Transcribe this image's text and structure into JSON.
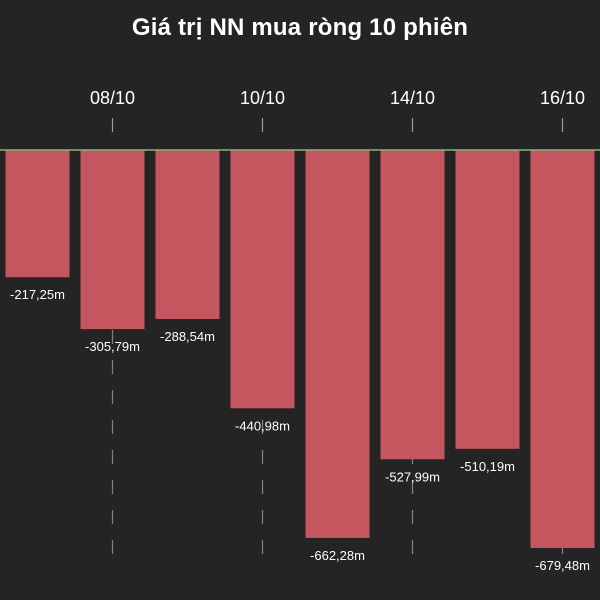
{
  "chart_data": {
    "type": "bar",
    "title": "Giá trị NN mua ròng 10 phiên",
    "categories": [
      "",
      "08/10",
      "",
      "10/10",
      "",
      "14/10",
      "",
      "16/10"
    ],
    "values": [
      -217.25,
      -305.79,
      -288.54,
      -440.98,
      -662.28,
      -527.99,
      -510.19,
      -679.48
    ],
    "value_labels": [
      "-217,25m",
      "-305,79m",
      "-288,54m",
      "-440,98m",
      "-662,28m",
      "-527,99m",
      "-510,19m",
      "-679,48m"
    ],
    "xlabel": "",
    "ylabel": "",
    "ylim": [
      -700,
      0
    ],
    "x_axis_position": "top",
    "grid": false,
    "colors": {
      "background": "#242424",
      "bar": "#c45660",
      "baseline": "#8fae84",
      "guide": "#9a9a9a",
      "text": "#ffffff"
    }
  }
}
